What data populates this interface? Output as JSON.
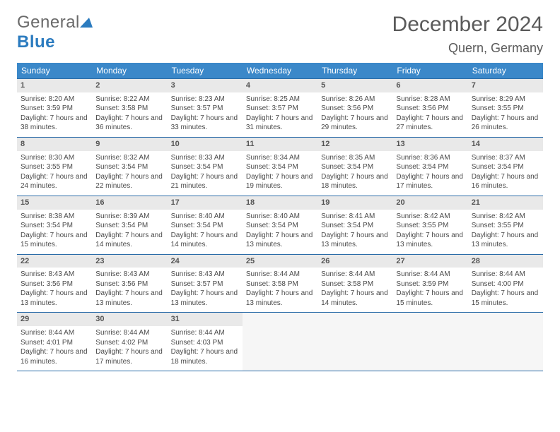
{
  "brand": {
    "part1": "General",
    "part2": "Blue"
  },
  "title": "December 2024",
  "location": "Quern, Germany",
  "colors": {
    "header_bg": "#3b88c9",
    "header_text": "#ffffff",
    "daynum_bg": "#e9e9e9",
    "border": "#2b6ca8",
    "text": "#4a4a4a",
    "title_text": "#5a5a5a"
  },
  "weekdays": [
    "Sunday",
    "Monday",
    "Tuesday",
    "Wednesday",
    "Thursday",
    "Friday",
    "Saturday"
  ],
  "weeks": [
    [
      {
        "num": "1",
        "sunrise": "Sunrise: 8:20 AM",
        "sunset": "Sunset: 3:59 PM",
        "day": "Daylight: 7 hours and 38 minutes."
      },
      {
        "num": "2",
        "sunrise": "Sunrise: 8:22 AM",
        "sunset": "Sunset: 3:58 PM",
        "day": "Daylight: 7 hours and 36 minutes."
      },
      {
        "num": "3",
        "sunrise": "Sunrise: 8:23 AM",
        "sunset": "Sunset: 3:57 PM",
        "day": "Daylight: 7 hours and 33 minutes."
      },
      {
        "num": "4",
        "sunrise": "Sunrise: 8:25 AM",
        "sunset": "Sunset: 3:57 PM",
        "day": "Daylight: 7 hours and 31 minutes."
      },
      {
        "num": "5",
        "sunrise": "Sunrise: 8:26 AM",
        "sunset": "Sunset: 3:56 PM",
        "day": "Daylight: 7 hours and 29 minutes."
      },
      {
        "num": "6",
        "sunrise": "Sunrise: 8:28 AM",
        "sunset": "Sunset: 3:56 PM",
        "day": "Daylight: 7 hours and 27 minutes."
      },
      {
        "num": "7",
        "sunrise": "Sunrise: 8:29 AM",
        "sunset": "Sunset: 3:55 PM",
        "day": "Daylight: 7 hours and 26 minutes."
      }
    ],
    [
      {
        "num": "8",
        "sunrise": "Sunrise: 8:30 AM",
        "sunset": "Sunset: 3:55 PM",
        "day": "Daylight: 7 hours and 24 minutes."
      },
      {
        "num": "9",
        "sunrise": "Sunrise: 8:32 AM",
        "sunset": "Sunset: 3:54 PM",
        "day": "Daylight: 7 hours and 22 minutes."
      },
      {
        "num": "10",
        "sunrise": "Sunrise: 8:33 AM",
        "sunset": "Sunset: 3:54 PM",
        "day": "Daylight: 7 hours and 21 minutes."
      },
      {
        "num": "11",
        "sunrise": "Sunrise: 8:34 AM",
        "sunset": "Sunset: 3:54 PM",
        "day": "Daylight: 7 hours and 19 minutes."
      },
      {
        "num": "12",
        "sunrise": "Sunrise: 8:35 AM",
        "sunset": "Sunset: 3:54 PM",
        "day": "Daylight: 7 hours and 18 minutes."
      },
      {
        "num": "13",
        "sunrise": "Sunrise: 8:36 AM",
        "sunset": "Sunset: 3:54 PM",
        "day": "Daylight: 7 hours and 17 minutes."
      },
      {
        "num": "14",
        "sunrise": "Sunrise: 8:37 AM",
        "sunset": "Sunset: 3:54 PM",
        "day": "Daylight: 7 hours and 16 minutes."
      }
    ],
    [
      {
        "num": "15",
        "sunrise": "Sunrise: 8:38 AM",
        "sunset": "Sunset: 3:54 PM",
        "day": "Daylight: 7 hours and 15 minutes."
      },
      {
        "num": "16",
        "sunrise": "Sunrise: 8:39 AM",
        "sunset": "Sunset: 3:54 PM",
        "day": "Daylight: 7 hours and 14 minutes."
      },
      {
        "num": "17",
        "sunrise": "Sunrise: 8:40 AM",
        "sunset": "Sunset: 3:54 PM",
        "day": "Daylight: 7 hours and 14 minutes."
      },
      {
        "num": "18",
        "sunrise": "Sunrise: 8:40 AM",
        "sunset": "Sunset: 3:54 PM",
        "day": "Daylight: 7 hours and 13 minutes."
      },
      {
        "num": "19",
        "sunrise": "Sunrise: 8:41 AM",
        "sunset": "Sunset: 3:54 PM",
        "day": "Daylight: 7 hours and 13 minutes."
      },
      {
        "num": "20",
        "sunrise": "Sunrise: 8:42 AM",
        "sunset": "Sunset: 3:55 PM",
        "day": "Daylight: 7 hours and 13 minutes."
      },
      {
        "num": "21",
        "sunrise": "Sunrise: 8:42 AM",
        "sunset": "Sunset: 3:55 PM",
        "day": "Daylight: 7 hours and 13 minutes."
      }
    ],
    [
      {
        "num": "22",
        "sunrise": "Sunrise: 8:43 AM",
        "sunset": "Sunset: 3:56 PM",
        "day": "Daylight: 7 hours and 13 minutes."
      },
      {
        "num": "23",
        "sunrise": "Sunrise: 8:43 AM",
        "sunset": "Sunset: 3:56 PM",
        "day": "Daylight: 7 hours and 13 minutes."
      },
      {
        "num": "24",
        "sunrise": "Sunrise: 8:43 AM",
        "sunset": "Sunset: 3:57 PM",
        "day": "Daylight: 7 hours and 13 minutes."
      },
      {
        "num": "25",
        "sunrise": "Sunrise: 8:44 AM",
        "sunset": "Sunset: 3:58 PM",
        "day": "Daylight: 7 hours and 13 minutes."
      },
      {
        "num": "26",
        "sunrise": "Sunrise: 8:44 AM",
        "sunset": "Sunset: 3:58 PM",
        "day": "Daylight: 7 hours and 14 minutes."
      },
      {
        "num": "27",
        "sunrise": "Sunrise: 8:44 AM",
        "sunset": "Sunset: 3:59 PM",
        "day": "Daylight: 7 hours and 15 minutes."
      },
      {
        "num": "28",
        "sunrise": "Sunrise: 8:44 AM",
        "sunset": "Sunset: 4:00 PM",
        "day": "Daylight: 7 hours and 15 minutes."
      }
    ],
    [
      {
        "num": "29",
        "sunrise": "Sunrise: 8:44 AM",
        "sunset": "Sunset: 4:01 PM",
        "day": "Daylight: 7 hours and 16 minutes."
      },
      {
        "num": "30",
        "sunrise": "Sunrise: 8:44 AM",
        "sunset": "Sunset: 4:02 PM",
        "day": "Daylight: 7 hours and 17 minutes."
      },
      {
        "num": "31",
        "sunrise": "Sunrise: 8:44 AM",
        "sunset": "Sunset: 4:03 PM",
        "day": "Daylight: 7 hours and 18 minutes."
      },
      null,
      null,
      null,
      null
    ]
  ]
}
